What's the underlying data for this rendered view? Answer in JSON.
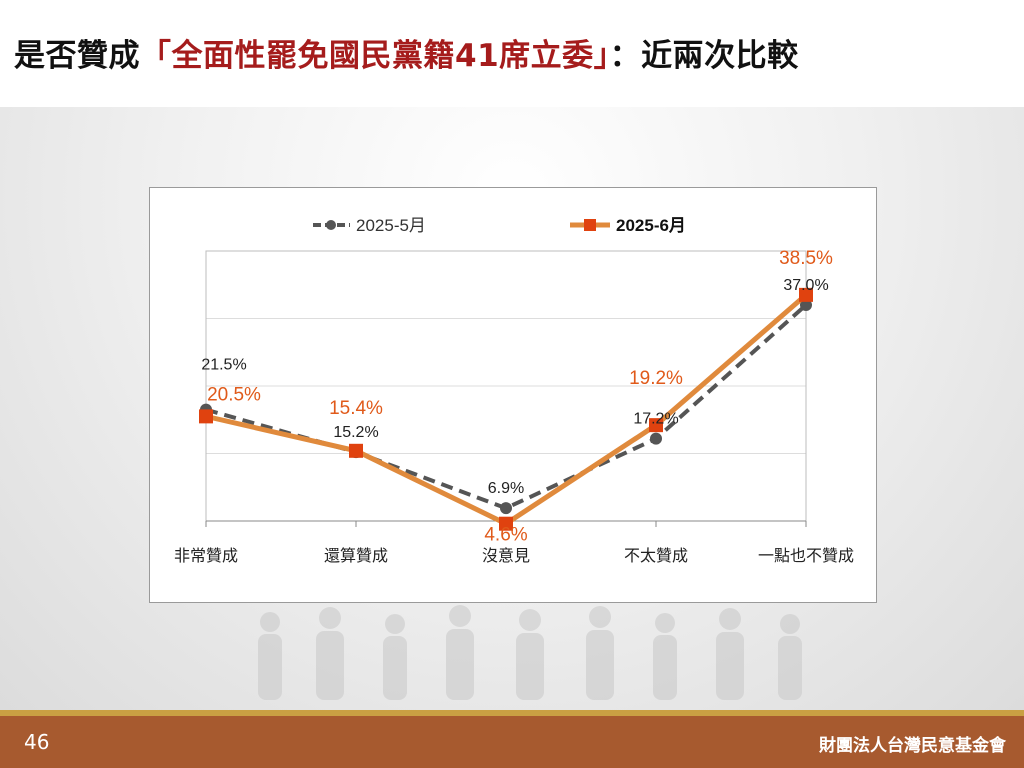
{
  "slide": {
    "title_prefix": "是否贊成",
    "title_highlight": "「全面性罷免國民黨籍41席立委」",
    "title_suffix": "：近兩次比較",
    "page_number": "46",
    "organization": "財團法人台灣民意基金會"
  },
  "colors": {
    "title_highlight": "#a51c1c",
    "series_may": "#555555",
    "series_june_line": "#e08a3c",
    "series_june_marker": "#e0420f",
    "june_label": "#e05a1a",
    "footer": "#a75a2f",
    "footer_stripe": "#c9a043"
  },
  "chart_data": {
    "type": "line",
    "categories": [
      "非常贊成",
      "還算贊成",
      "沒意見",
      "不太贊成",
      "一點也不贊成"
    ],
    "series": [
      {
        "name": "2025-5月",
        "values": [
          21.5,
          15.2,
          6.9,
          17.2,
          37.0
        ],
        "labels": [
          "21.5%",
          "15.2%",
          "6.9%",
          "17.2%",
          "37.0%"
        ],
        "style": "dashed",
        "marker": "circle"
      },
      {
        "name": "2025-6月",
        "values": [
          20.5,
          15.4,
          4.6,
          19.2,
          38.5
        ],
        "labels": [
          "20.5%",
          "15.4%",
          "4.6%",
          "19.2%",
          "38.5%"
        ],
        "style": "solid",
        "marker": "square"
      }
    ],
    "ylim": [
      5,
      45
    ],
    "grid": true,
    "legend_position": "top"
  }
}
